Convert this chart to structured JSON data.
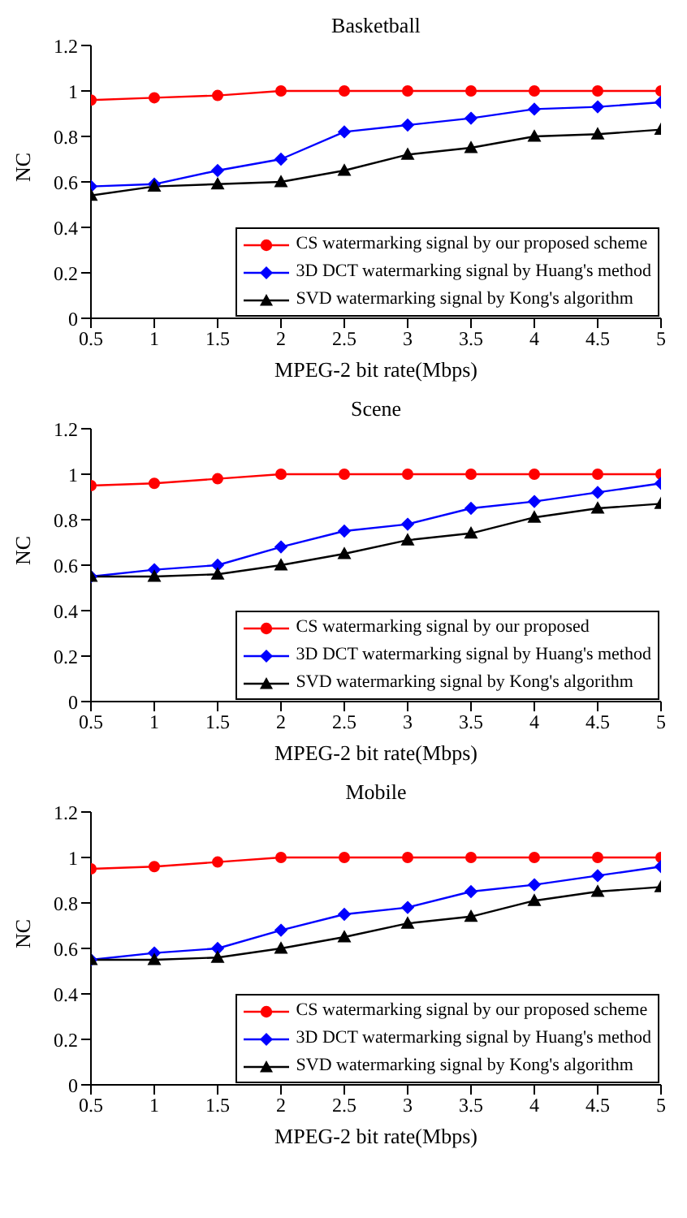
{
  "chart_data": [
    {
      "type": "line",
      "title": "Basketball",
      "xlabel": "MPEG-2 bit rate(Mbps)",
      "ylabel": "NC",
      "x": [
        0.5,
        1,
        1.5,
        2,
        2.5,
        3,
        3.5,
        4,
        4.5,
        5
      ],
      "xlim": [
        0.5,
        5
      ],
      "xticks": [
        0.5,
        1,
        1.5,
        2,
        2.5,
        3,
        3.5,
        4,
        4.5,
        5
      ],
      "ylim": [
        0,
        1.2
      ],
      "yticks": [
        0,
        0.2,
        0.4,
        0.6,
        0.8,
        1,
        1.2
      ],
      "grid": false,
      "legend": "bottom right",
      "line_style": "solid",
      "series": [
        {
          "name": "CS watermarking signal by our proposed scheme",
          "color": "#ff0000",
          "marker": "circle",
          "values": [
            0.96,
            0.97,
            0.98,
            1,
            1,
            1,
            1,
            1,
            1,
            1
          ]
        },
        {
          "name": "3D DCT watermarking signal by Huang's method",
          "color": "#0000ff",
          "marker": "diamond",
          "values": [
            0.58,
            0.59,
            0.65,
            0.7,
            0.82,
            0.85,
            0.88,
            0.92,
            0.93,
            0.95
          ]
        },
        {
          "name": "SVD watermarking signal by Kong's algorithm",
          "color": "#000000",
          "marker": "triangle",
          "values": [
            0.54,
            0.58,
            0.59,
            0.6,
            0.65,
            0.72,
            0.75,
            0.8,
            0.81,
            0.83
          ]
        }
      ]
    },
    {
      "type": "line",
      "title": "Scene",
      "xlabel": "MPEG-2 bit rate(Mbps)",
      "ylabel": "NC",
      "x": [
        0.5,
        1,
        1.5,
        2,
        2.5,
        3,
        3.5,
        4,
        4.5,
        5
      ],
      "xlim": [
        0.5,
        5
      ],
      "xticks": [
        0.5,
        1,
        1.5,
        2,
        2.5,
        3,
        3.5,
        4,
        4.5,
        5
      ],
      "ylim": [
        0,
        1.2
      ],
      "yticks": [
        0,
        0.2,
        0.4,
        0.6,
        0.8,
        1,
        1.2
      ],
      "grid": false,
      "legend": "bottom right",
      "line_style": "solid",
      "series": [
        {
          "name": "CS watermarking signal by our proposed",
          "color": "#ff0000",
          "marker": "circle",
          "values": [
            0.95,
            0.96,
            0.98,
            1,
            1,
            1,
            1,
            1,
            1,
            1
          ]
        },
        {
          "name": "3D DCT watermarking signal by Huang's method",
          "color": "#0000ff",
          "marker": "diamond",
          "values": [
            0.55,
            0.58,
            0.6,
            0.68,
            0.75,
            0.78,
            0.85,
            0.88,
            0.92,
            0.96
          ]
        },
        {
          "name": "SVD watermarking signal by Kong's algorithm",
          "color": "#000000",
          "marker": "triangle",
          "values": [
            0.55,
            0.55,
            0.56,
            0.6,
            0.65,
            0.71,
            0.74,
            0.81,
            0.85,
            0.87
          ]
        }
      ]
    },
    {
      "type": "line",
      "title": "Mobile",
      "xlabel": "MPEG-2 bit rate(Mbps)",
      "ylabel": "NC",
      "x": [
        0.5,
        1,
        1.5,
        2,
        2.5,
        3,
        3.5,
        4,
        4.5,
        5
      ],
      "xlim": [
        0.5,
        5
      ],
      "xticks": [
        0.5,
        1,
        1.5,
        2,
        2.5,
        3,
        3.5,
        4,
        4.5,
        5
      ],
      "ylim": [
        0,
        1.2
      ],
      "yticks": [
        0,
        0.2,
        0.4,
        0.6,
        0.8,
        1,
        1.2
      ],
      "grid": false,
      "legend": "bottom right",
      "line_style": "solid",
      "series": [
        {
          "name": "CS watermarking signal by our proposed scheme",
          "color": "#ff0000",
          "marker": "circle",
          "values": [
            0.95,
            0.96,
            0.98,
            1,
            1,
            1,
            1,
            1,
            1,
            1
          ]
        },
        {
          "name": "3D DCT watermarking signal by Huang's method",
          "color": "#0000ff",
          "marker": "diamond",
          "values": [
            0.55,
            0.58,
            0.6,
            0.68,
            0.75,
            0.78,
            0.85,
            0.88,
            0.92,
            0.96
          ]
        },
        {
          "name": "SVD watermarking signal by Kong's algorithm",
          "color": "#000000",
          "marker": "triangle",
          "values": [
            0.55,
            0.55,
            0.56,
            0.6,
            0.65,
            0.71,
            0.74,
            0.81,
            0.85,
            0.87
          ]
        }
      ]
    }
  ]
}
